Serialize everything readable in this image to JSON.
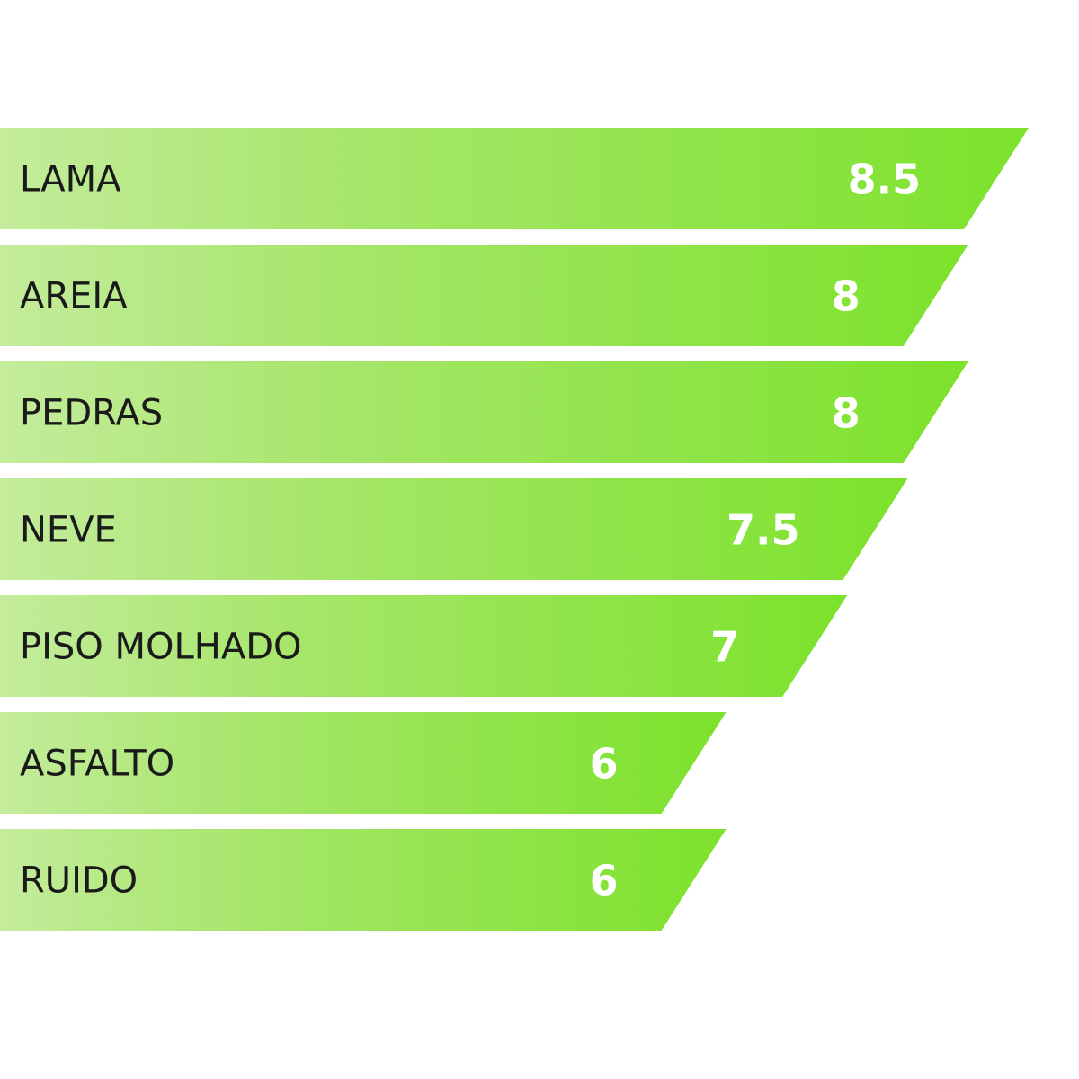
{
  "chart_data": {
    "type": "bar",
    "orientation": "horizontal",
    "categories": [
      "LAMA",
      "AREIA",
      "PEDRAS",
      "NEVE",
      "PISO MOLHADO",
      "ASFALTO",
      "RUIDO"
    ],
    "values": [
      8.5,
      8,
      8,
      7.5,
      7,
      6,
      6
    ],
    "value_labels": [
      "8.5",
      "8",
      "8",
      "7.5",
      "7",
      "6",
      "6"
    ],
    "title": "",
    "xlabel": "",
    "ylabel": "",
    "xlim": [
      0,
      10
    ],
    "grid": false,
    "legend": "none",
    "colors": {
      "bar_gradient_start": "#c4ec9c",
      "bar_gradient_end": "#7ce22b",
      "label_text": "#1a1a1a",
      "value_text": "#ffffff"
    }
  }
}
